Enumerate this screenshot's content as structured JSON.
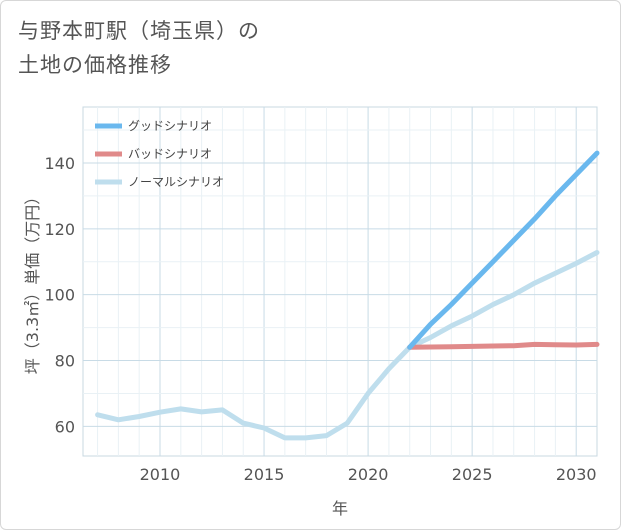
{
  "title_line1": "与野本町駅（埼玉県）の",
  "title_line2": "土地の価格推移",
  "chart_data": {
    "type": "line",
    "title": "与野本町駅（埼玉県）の土地の価格推移",
    "xlabel": "年",
    "ylabel": "坪（3.3㎡）単価（万円）",
    "xlim": [
      2006.3,
      2031
    ],
    "ylim": [
      51,
      157
    ],
    "xticks": [
      2010,
      2015,
      2020,
      2025,
      2030
    ],
    "yticks": [
      60,
      80,
      100,
      120,
      140
    ],
    "grid": true,
    "legend_position": "top-left",
    "series": [
      {
        "name": "グッドシナリオ",
        "color": "#6ab8ee",
        "x": [
          2022,
          2023,
          2024,
          2025,
          2026,
          2027,
          2028,
          2029,
          2030,
          2031
        ],
        "y": [
          84,
          91,
          97,
          103.5,
          110,
          116.5,
          123,
          130,
          136.5,
          143
        ]
      },
      {
        "name": "バッドシナリオ",
        "color": "#e08a8a",
        "x": [
          2022,
          2023,
          2024,
          2025,
          2026,
          2027,
          2028,
          2029,
          2030,
          2031
        ],
        "y": [
          84,
          84.1,
          84.2,
          84.3,
          84.4,
          84.5,
          84.9,
          84.8,
          84.7,
          84.9
        ]
      },
      {
        "name": "ノーマルシナリオ",
        "color": "#bfdeed",
        "x": [
          2007,
          2008,
          2009,
          2010,
          2011,
          2012,
          2013,
          2014,
          2015,
          2016,
          2017,
          2018,
          2019,
          2020,
          2021,
          2022,
          2023,
          2024,
          2025,
          2026,
          2027,
          2028,
          2029,
          2030,
          2031
        ],
        "y": [
          63.5,
          62,
          63,
          64.3,
          65.3,
          64.4,
          65,
          61,
          59.5,
          56.5,
          56.5,
          57.2,
          61,
          70,
          77.5,
          84,
          87,
          90.5,
          93.5,
          97,
          100,
          103.5,
          106.5,
          109.5,
          112.8
        ]
      }
    ]
  }
}
